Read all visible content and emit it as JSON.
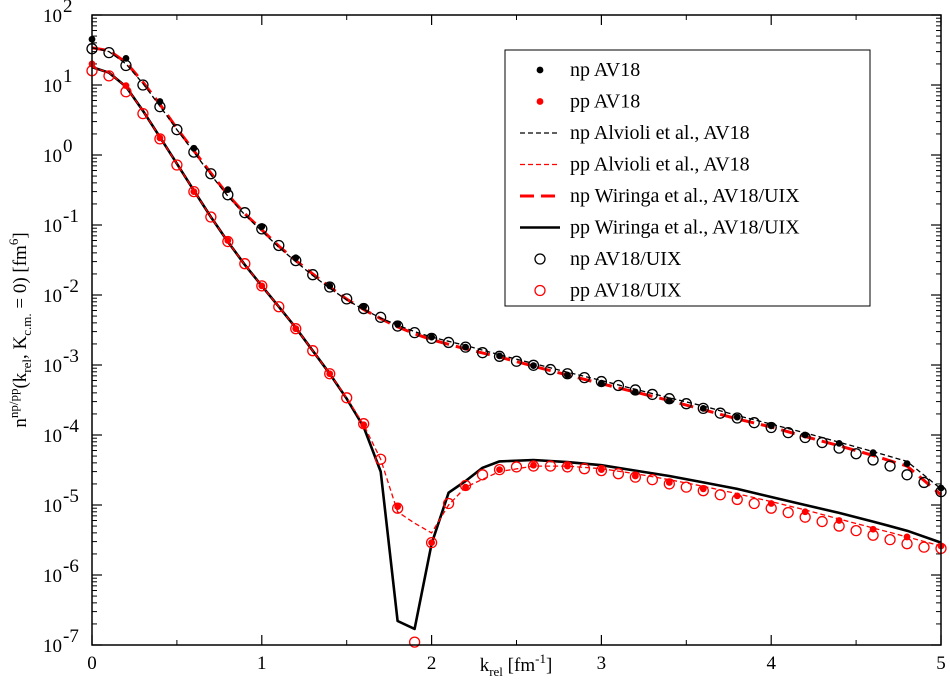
{
  "chart_data": {
    "type": "line",
    "title": "",
    "xlabel": "k_rel [fm^-1]",
    "ylabel": "n^np/pp(k_rel, K_c.m. = 0) [fm^6]",
    "xlim": [
      0,
      5
    ],
    "ylim": [
      1e-07,
      100
    ],
    "yscale": "log",
    "x_ticks": [
      {
        "v": 0,
        "label": "0"
      },
      {
        "v": 1,
        "label": "1"
      },
      {
        "v": 2,
        "label": "2"
      },
      {
        "v": 3,
        "label": "3"
      },
      {
        "v": 4,
        "label": "4"
      },
      {
        "v": 5,
        "label": "5"
      }
    ],
    "y_ticks": [
      {
        "exp": 2,
        "base": "10",
        "sup": "2"
      },
      {
        "exp": 1,
        "base": "10",
        "sup": "1"
      },
      {
        "exp": 0,
        "base": "10",
        "sup": "0"
      },
      {
        "exp": -1,
        "base": "10",
        "sup": "-1"
      },
      {
        "exp": -2,
        "base": "10",
        "sup": "-2"
      },
      {
        "exp": -3,
        "base": "10",
        "sup": "-3"
      },
      {
        "exp": -4,
        "base": "10",
        "sup": "-4"
      },
      {
        "exp": -5,
        "base": "10",
        "sup": "-5"
      },
      {
        "exp": -6,
        "base": "10",
        "sup": "-6"
      },
      {
        "exp": -7,
        "base": "10",
        "sup": "-7"
      }
    ],
    "legend_position": "top-right",
    "series": [
      {
        "name": "np AV18",
        "style": "filled-dot",
        "color": "#000000",
        "x": [
          0,
          0.2,
          0.4,
          0.6,
          0.8,
          1.0,
          1.2,
          1.4,
          1.6,
          1.8,
          2.0,
          2.2,
          2.4,
          2.6,
          2.8,
          3.0,
          3.2,
          3.4,
          3.6,
          3.8,
          4.0,
          4.2,
          4.4,
          4.6,
          4.8,
          5.0
        ],
        "y": [
          45,
          24,
          5.8,
          1.25,
          0.32,
          0.095,
          0.034,
          0.0135,
          0.0068,
          0.0038,
          0.0025,
          0.0018,
          0.00135,
          0.00098,
          0.00072,
          0.00055,
          0.00041,
          0.00031,
          0.00024,
          0.00018,
          0.000135,
          0.0001,
          7.6e-05,
          5.6e-05,
          3.9e-05,
          1.75e-05
        ]
      },
      {
        "name": "pp AV18",
        "style": "filled-dot",
        "color": "#ff0000",
        "x": [
          0,
          0.2,
          0.4,
          0.6,
          0.8,
          1.0,
          1.2,
          1.4,
          1.6,
          1.8,
          2.0,
          2.2,
          2.4,
          2.6,
          2.8,
          3.0,
          3.2,
          3.4,
          3.6,
          3.8,
          4.0,
          4.2,
          4.4,
          4.6,
          4.8,
          5.0
        ],
        "y": [
          20,
          9.8,
          1.75,
          0.3,
          0.06,
          0.0135,
          0.0033,
          0.00075,
          0.00014,
          9.5e-06,
          2.9e-06,
          1.8e-05,
          3.2e-05,
          3.7e-05,
          3.6e-05,
          3.2e-05,
          2.6e-05,
          2.1e-05,
          1.7e-05,
          1.35e-05,
          1.05e-05,
          8e-06,
          6e-06,
          4.5e-06,
          3.5e-06,
          2.6e-06
        ]
      },
      {
        "name": "np Alvioli et al., AV18",
        "style": "dashed-line",
        "color": "#000000",
        "x": [
          0,
          0.1,
          0.2,
          0.3,
          0.4,
          0.5,
          0.6,
          0.7,
          0.8,
          0.9,
          1.0,
          1.1,
          1.2,
          1.3,
          1.4,
          1.5,
          1.6,
          1.7,
          1.8,
          1.9,
          2.0,
          2.2,
          2.4,
          2.6,
          2.8,
          3.0,
          3.2,
          3.4,
          3.6,
          3.8,
          4.0,
          4.2,
          4.4,
          4.6,
          4.8,
          5.0
        ],
        "y": [
          34,
          30,
          20,
          10.5,
          5.0,
          2.3,
          1.1,
          0.52,
          0.26,
          0.14,
          0.082,
          0.048,
          0.03,
          0.019,
          0.0125,
          0.0085,
          0.0062,
          0.0047,
          0.0037,
          0.003,
          0.0025,
          0.0019,
          0.0014,
          0.00105,
          0.00079,
          0.0006,
          0.00045,
          0.00034,
          0.00026,
          0.00019,
          0.000143,
          0.000107,
          7.9e-05,
          5.8e-05,
          4.2e-05,
          1.7e-05
        ]
      },
      {
        "name": "pp Alvioli et al., AV18",
        "style": "dashed-line",
        "color": "#ff0000",
        "x": [
          0,
          0.1,
          0.2,
          0.3,
          0.4,
          0.5,
          0.6,
          0.7,
          0.8,
          0.9,
          1.0,
          1.1,
          1.2,
          1.3,
          1.4,
          1.5,
          1.6,
          1.7,
          1.8,
          1.9,
          2.0,
          2.1,
          2.2,
          2.4,
          2.6,
          2.8,
          3.0,
          3.2,
          3.4,
          3.6,
          3.8,
          4.0,
          4.2,
          4.4,
          4.6,
          4.8,
          5.0
        ],
        "y": [
          18,
          15,
          9.5,
          4.3,
          1.8,
          0.75,
          0.31,
          0.13,
          0.058,
          0.027,
          0.0135,
          0.0068,
          0.0034,
          0.0016,
          0.00075,
          0.00034,
          0.00014,
          4.5e-05,
          8e-06,
          5.5e-06,
          4e-06,
          1e-05,
          1.8e-05,
          3e-05,
          3.6e-05,
          3.6e-05,
          3.3e-05,
          2.8e-05,
          2.3e-05,
          1.85e-05,
          1.45e-05,
          1.12e-05,
          8.5e-06,
          6.3e-06,
          4.7e-06,
          3.5e-06,
          2.6e-06
        ]
      },
      {
        "name": "np Wiringa et al., AV18/UIX",
        "style": "long-dashed-line",
        "color": "#ff0000",
        "x": [
          0,
          0.1,
          0.2,
          0.3,
          0.4,
          0.5,
          0.6,
          0.7,
          0.8,
          0.9,
          1.0,
          1.1,
          1.2,
          1.3,
          1.4,
          1.5,
          1.6,
          1.7,
          1.8,
          1.9,
          2.0,
          2.2,
          2.4,
          2.6,
          2.8,
          3.0,
          3.2,
          3.4,
          3.6,
          3.8,
          4.0,
          4.2,
          4.4,
          4.6,
          4.8,
          5.0
        ],
        "y": [
          34,
          31,
          21,
          11,
          5.3,
          2.4,
          1.15,
          0.55,
          0.27,
          0.145,
          0.085,
          0.05,
          0.031,
          0.02,
          0.013,
          0.0087,
          0.0062,
          0.0046,
          0.0035,
          0.0028,
          0.0023,
          0.0017,
          0.0013,
          0.00096,
          0.00072,
          0.00054,
          0.00041,
          0.00031,
          0.00023,
          0.00017,
          0.00013,
          9.5e-05,
          7e-05,
          5.1e-05,
          3.6e-05,
          1.4e-05
        ]
      },
      {
        "name": "pp Wiringa et al., AV18/UIX",
        "style": "solid-line",
        "color": "#000000",
        "x": [
          0,
          0.1,
          0.2,
          0.3,
          0.4,
          0.5,
          0.6,
          0.7,
          0.8,
          0.9,
          1.0,
          1.1,
          1.2,
          1.3,
          1.4,
          1.5,
          1.6,
          1.7,
          1.8,
          1.9,
          2.0,
          2.1,
          2.2,
          2.3,
          2.4,
          2.6,
          2.8,
          3.0,
          3.2,
          3.4,
          3.6,
          3.8,
          4.0,
          4.2,
          4.4,
          4.6,
          4.8,
          5.0
        ],
        "y": [
          18,
          15,
          9.5,
          4.3,
          1.8,
          0.75,
          0.31,
          0.13,
          0.058,
          0.027,
          0.0135,
          0.0068,
          0.0034,
          0.0016,
          0.00075,
          0.00033,
          0.00013,
          3e-05,
          2.2e-07,
          1.7e-07,
          2.8e-06,
          1.5e-05,
          2.2e-05,
          3.4e-05,
          4.2e-05,
          4.4e-05,
          4.1e-05,
          3.7e-05,
          3.1e-05,
          2.6e-05,
          2.1e-05,
          1.7e-05,
          1.3e-05,
          1e-05,
          7.7e-06,
          5.8e-06,
          4.3e-06,
          2.9e-06
        ]
      },
      {
        "name": "np AV18/UIX",
        "style": "open-circle",
        "color": "#000000",
        "x": [
          0,
          0.1,
          0.2,
          0.3,
          0.4,
          0.5,
          0.6,
          0.7,
          0.8,
          0.9,
          1.0,
          1.1,
          1.2,
          1.3,
          1.4,
          1.5,
          1.6,
          1.7,
          1.8,
          1.9,
          2.0,
          2.1,
          2.2,
          2.3,
          2.4,
          2.5,
          2.6,
          2.7,
          2.8,
          2.9,
          3.0,
          3.1,
          3.2,
          3.3,
          3.4,
          3.5,
          3.6,
          3.7,
          3.8,
          3.9,
          4.0,
          4.1,
          4.2,
          4.3,
          4.4,
          4.5,
          4.6,
          4.7,
          4.8,
          4.9,
          5.0
        ],
        "y": [
          33,
          29,
          19,
          10,
          4.9,
          2.3,
          1.1,
          0.54,
          0.27,
          0.15,
          0.088,
          0.051,
          0.031,
          0.0195,
          0.013,
          0.0088,
          0.0064,
          0.0048,
          0.0036,
          0.0029,
          0.0024,
          0.0021,
          0.0018,
          0.0015,
          0.00133,
          0.00113,
          0.00099,
          0.00086,
          0.00075,
          0.00066,
          0.00058,
          0.00051,
          0.00044,
          0.00038,
          0.00033,
          0.00028,
          0.00024,
          0.000205,
          0.000175,
          0.00015,
          0.000128,
          0.000108,
          9.2e-05,
          7.8e-05,
          6.5e-05,
          5.4e-05,
          4.4e-05,
          3.6e-05,
          2.7e-05,
          2.1e-05,
          1.55e-05
        ]
      },
      {
        "name": "pp AV18/UIX",
        "style": "open-circle",
        "color": "#ff0000",
        "x": [
          0,
          0.1,
          0.2,
          0.3,
          0.4,
          0.5,
          0.6,
          0.7,
          0.8,
          0.9,
          1.0,
          1.1,
          1.2,
          1.3,
          1.4,
          1.5,
          1.6,
          1.7,
          1.8,
          1.9,
          2.0,
          2.1,
          2.2,
          2.3,
          2.4,
          2.5,
          2.6,
          2.7,
          2.8,
          2.9,
          3.0,
          3.1,
          3.2,
          3.3,
          3.4,
          3.5,
          3.6,
          3.7,
          3.8,
          3.9,
          4.0,
          4.1,
          4.2,
          4.3,
          4.4,
          4.5,
          4.6,
          4.7,
          4.8,
          4.9,
          5.0
        ],
        "y": [
          16,
          13.5,
          8,
          3.9,
          1.7,
          0.72,
          0.3,
          0.13,
          0.058,
          0.028,
          0.0135,
          0.0068,
          0.0033,
          0.0016,
          0.00075,
          0.00034,
          0.000145,
          4.5e-05,
          9e-06,
          1.1e-07,
          2.9e-06,
          1.05e-05,
          1.9e-05,
          2.7e-05,
          3.2e-05,
          3.5e-05,
          3.6e-05,
          3.6e-05,
          3.5e-05,
          3.3e-05,
          3.1e-05,
          2.8e-05,
          2.5e-05,
          2.3e-05,
          2e-05,
          1.8e-05,
          1.6e-05,
          1.4e-05,
          1.2e-05,
          1.05e-05,
          9e-06,
          7.8e-06,
          6.7e-06,
          5.8e-06,
          5e-06,
          4.3e-06,
          3.7e-06,
          3.2e-06,
          2.8e-06,
          2.5e-06,
          2.4e-06
        ]
      }
    ]
  },
  "axis_labels": {
    "x_main": "k",
    "x_sub": "rel",
    "x_rest": " [fm",
    "x_sup": "-1",
    "x_close": "]",
    "y_main": "n",
    "y_sup": "np/pp",
    "y_open": "(k",
    "y_sub1": "rel",
    "y_mid": ", K",
    "y_sub2": "c.m.",
    "y_eq": " = 0) [fm",
    "y_sup2": "6",
    "y_close": "]"
  }
}
